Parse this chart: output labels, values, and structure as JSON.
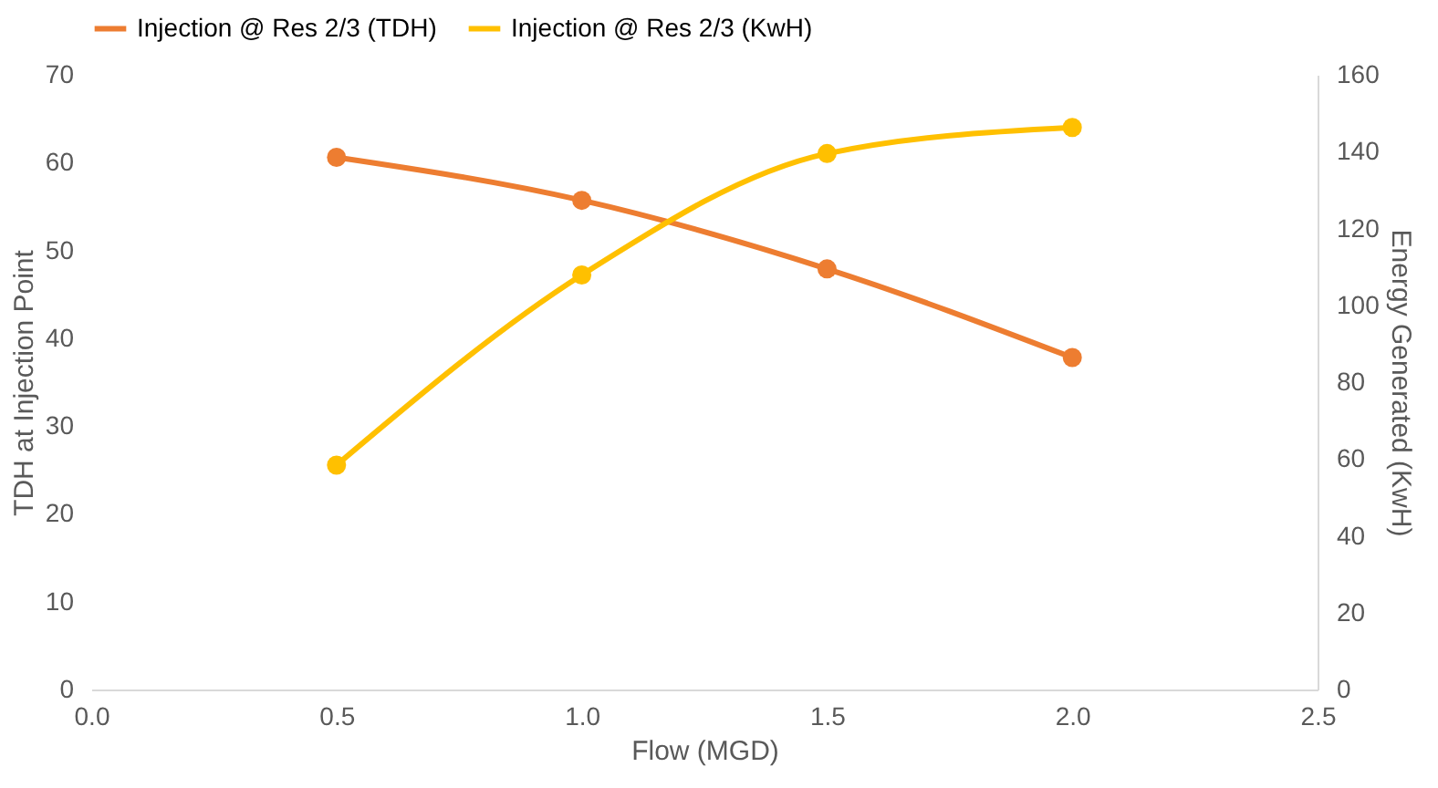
{
  "chart_data": {
    "type": "line",
    "xlabel": "Flow (MGD)",
    "ylabel": "TDH at Injection Point",
    "y2label": "Energy Generated (KwH)",
    "x": [
      0.5,
      1.0,
      1.5,
      2.0
    ],
    "series": [
      {
        "name": "Injection @ Res 2/3 (TDH)",
        "color": "#ed7d31",
        "values": [
          60.6,
          55.7,
          47.9,
          37.8
        ]
      },
      {
        "name": "Injection @ Res 2/3 (KwH)",
        "color": "#ffc000",
        "values": [
          58.4,
          107.9,
          139.5,
          146.3
        ],
        "axis": "y2"
      }
    ],
    "xlim": [
      0.0,
      2.5
    ],
    "xticks": [
      {
        "value": 0,
        "label": "0.0"
      },
      {
        "value": 0.5,
        "label": "0.5"
      },
      {
        "value": 1,
        "label": "1.0"
      },
      {
        "value": 1.5,
        "label": "1.5"
      },
      {
        "value": 2,
        "label": "2.0"
      },
      {
        "value": 2.5,
        "label": "2.5"
      }
    ],
    "ylim": [
      0,
      70
    ],
    "yticks": [
      0,
      10,
      20,
      30,
      40,
      50,
      60,
      70
    ],
    "y2lim": [
      0,
      160
    ],
    "y2ticks": [
      0,
      20,
      40,
      60,
      80,
      100,
      120,
      140,
      160
    ],
    "marker": "circle",
    "line_style": "solid",
    "legend": "top",
    "grid": false
  }
}
